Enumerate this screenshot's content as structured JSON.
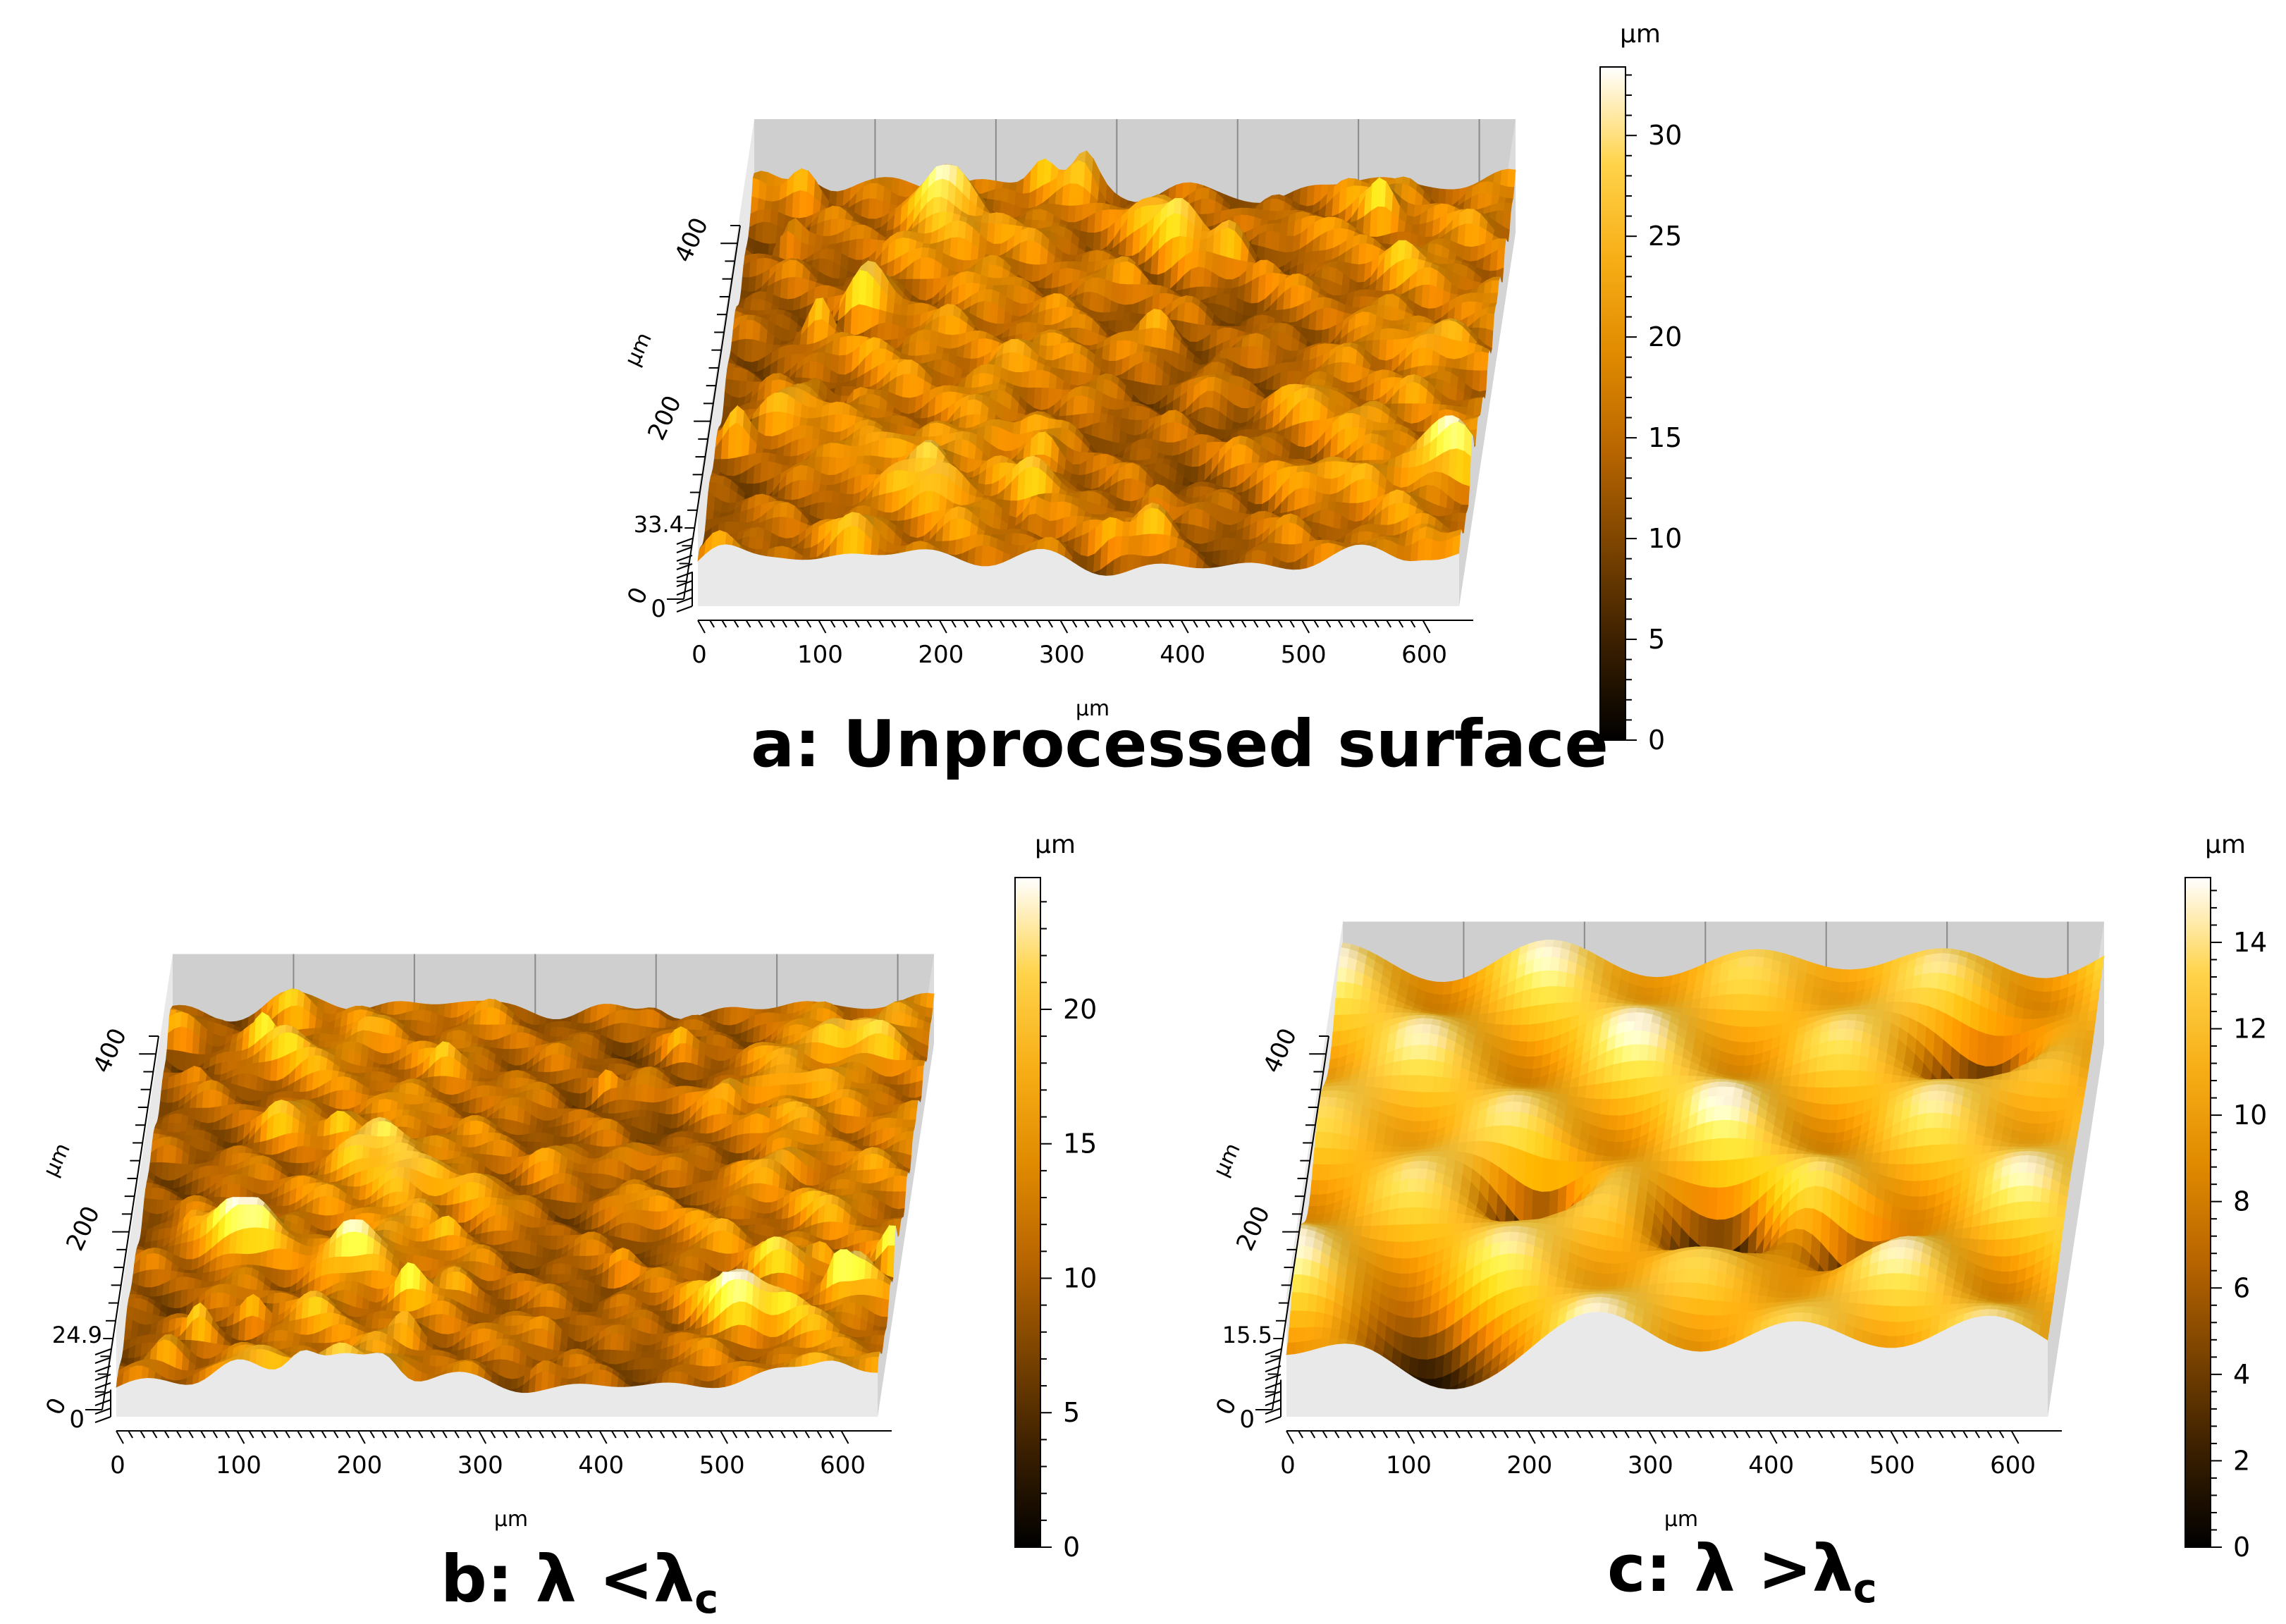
{
  "palette": {
    "stops": [
      "#000000",
      "#3a1f00",
      "#7a4300",
      "#b86500",
      "#e08a00",
      "#f7ae16",
      "#ffd34a",
      "#ffffff"
    ],
    "wall": "#e6e6e6",
    "wall_dark": "#9a9a9a"
  },
  "chart_data": [
    {
      "type": "heatmap",
      "title": "a: Unprocessed surface",
      "xlabel": "µm",
      "ylabel": "µm",
      "zlabel": "µm",
      "colorbar_label": "µm",
      "x_ticks": [
        "0",
        "100",
        "200",
        "300",
        "400",
        "500",
        "600"
      ],
      "y_ticks": [
        "0",
        "200",
        "400"
      ],
      "z_ticks": [
        "0",
        "33.4"
      ],
      "colorbar_ticks": [
        "0",
        "5",
        "10",
        "15",
        "20",
        "25",
        "30"
      ],
      "xlim": [
        0,
        630
      ],
      "ylim": [
        0,
        420
      ],
      "zlim": [
        0,
        33.4
      ],
      "colorbar_max": 33.4
    },
    {
      "type": "heatmap",
      "title": "b: λ <λ",
      "title_sub": "c",
      "xlabel": "µm",
      "ylabel": "µm",
      "zlabel": "µm",
      "colorbar_label": "µm",
      "x_ticks": [
        "0",
        "100",
        "200",
        "300",
        "400",
        "500",
        "600"
      ],
      "y_ticks": [
        "0",
        "200",
        "400"
      ],
      "z_ticks": [
        "0",
        "24.9"
      ],
      "colorbar_ticks": [
        "0",
        "5",
        "10",
        "15",
        "20"
      ],
      "xlim": [
        0,
        630
      ],
      "ylim": [
        0,
        420
      ],
      "zlim": [
        0,
        24.9
      ],
      "colorbar_max": 24.9
    },
    {
      "type": "heatmap",
      "title": "c: λ >λ",
      "title_sub": "c",
      "xlabel": "µm",
      "ylabel": "µm",
      "zlabel": "µm",
      "colorbar_label": "µm",
      "x_ticks": [
        "0",
        "100",
        "200",
        "300",
        "400",
        "500",
        "600"
      ],
      "y_ticks": [
        "0",
        "200",
        "400"
      ],
      "z_ticks": [
        "0",
        "15.5"
      ],
      "colorbar_ticks": [
        "0",
        "2",
        "4",
        "6",
        "8",
        "10",
        "12",
        "14"
      ],
      "xlim": [
        0,
        630
      ],
      "ylim": [
        0,
        420
      ],
      "zlim": [
        0,
        15.5
      ],
      "colorbar_max": 15.5
    }
  ]
}
